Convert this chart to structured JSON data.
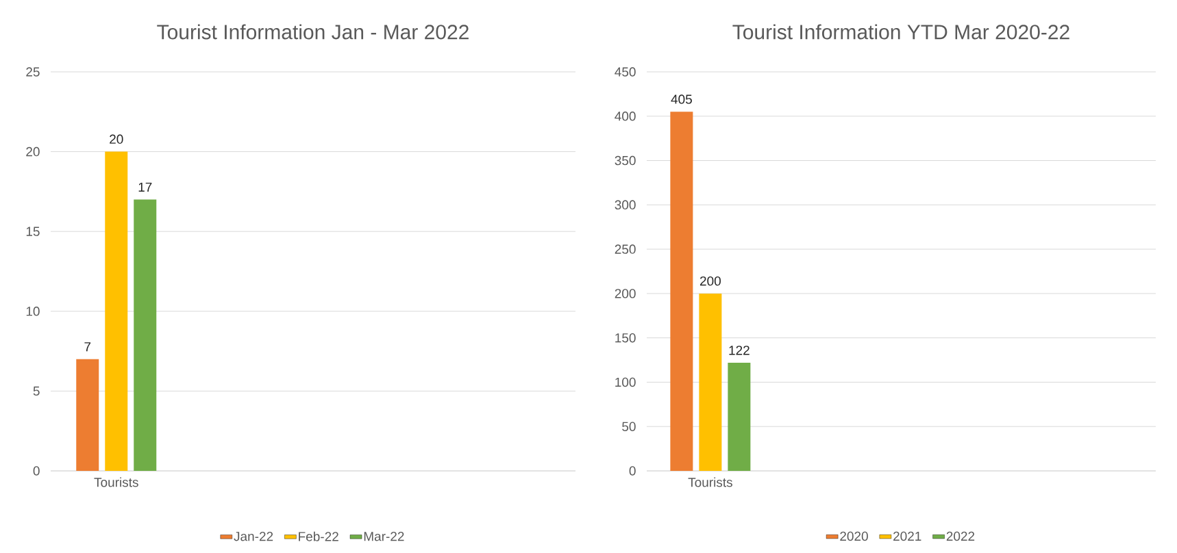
{
  "chart_data": [
    {
      "type": "bar",
      "title": "Tourist Information Jan - Mar 2022",
      "categories": [
        "Tourists",
        null,
        null,
        null
      ],
      "series": [
        {
          "name": "Jan-22",
          "color": "#ed7d31",
          "values": [
            7,
            null,
            null,
            null
          ]
        },
        {
          "name": "Feb-22",
          "color": "#ffc000",
          "values": [
            20,
            null,
            null,
            null
          ]
        },
        {
          "name": "Mar-22",
          "color": "#70ad47",
          "values": [
            17,
            null,
            null,
            null
          ]
        }
      ],
      "ylim": [
        0,
        25
      ],
      "yticks": [
        0,
        5,
        10,
        15,
        20,
        25
      ],
      "grid": "y",
      "legend": "bottom",
      "data_labels": true
    },
    {
      "type": "bar",
      "title": "Tourist Information YTD Mar 2020-22",
      "categories": [
        "Tourists",
        null,
        null,
        null
      ],
      "series": [
        {
          "name": "2020",
          "color": "#ed7d31",
          "values": [
            405,
            null,
            null,
            null
          ]
        },
        {
          "name": "2021",
          "color": "#ffc000",
          "values": [
            200,
            null,
            null,
            null
          ]
        },
        {
          "name": "2022",
          "color": "#70ad47",
          "values": [
            122,
            null,
            null,
            null
          ]
        }
      ],
      "ylim": [
        0,
        450
      ],
      "yticks": [
        0,
        50,
        100,
        150,
        200,
        250,
        300,
        350,
        400,
        450
      ],
      "grid": "y",
      "legend": "bottom",
      "data_labels": true
    }
  ]
}
